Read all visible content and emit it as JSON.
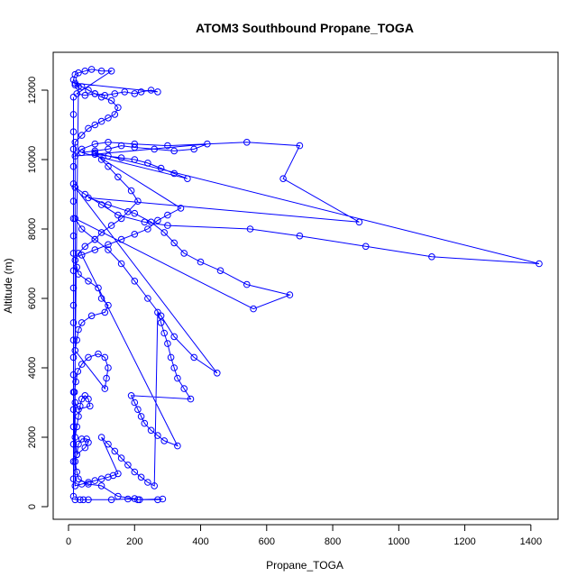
{
  "chart_data": {
    "type": "line",
    "title": "ATOM3 Southbound Propane_TOGA",
    "xlabel": "Propane_TOGA",
    "ylabel": "Altitude (m)",
    "xlim": [
      0,
      1440
    ],
    "ylim": [
      0,
      12700
    ],
    "x_ticks": [
      0,
      200,
      400,
      600,
      800,
      1000,
      1200,
      1400
    ],
    "y_ticks": [
      0,
      2000,
      4000,
      6000,
      8000,
      10000,
      12000
    ],
    "marker": "open-circle",
    "grid": false,
    "color": "#0000ff",
    "series": [
      {
        "name": "",
        "points": [
          [
            20,
            200
          ],
          [
            35,
            200
          ],
          [
            45,
            200
          ],
          [
            60,
            200
          ],
          [
            130,
            200
          ],
          [
            180,
            220
          ],
          [
            215,
            200
          ],
          [
            270,
            200
          ],
          [
            285,
            220
          ],
          [
            210,
            200
          ],
          [
            200,
            230
          ],
          [
            150,
            300
          ],
          [
            100,
            600
          ],
          [
            60,
            650
          ],
          [
            30,
            800
          ],
          [
            25,
            1000
          ],
          [
            20,
            1300
          ],
          [
            25,
            1500
          ],
          [
            30,
            1800
          ],
          [
            40,
            1950
          ],
          [
            55,
            1950
          ],
          [
            60,
            1850
          ],
          [
            50,
            1700
          ],
          [
            25,
            1500
          ],
          [
            20,
            2000
          ],
          [
            25,
            2300
          ],
          [
            30,
            2600
          ],
          [
            35,
            2900
          ],
          [
            40,
            3100
          ],
          [
            50,
            3200
          ],
          [
            60,
            3100
          ],
          [
            65,
            2900
          ],
          [
            30,
            2800
          ],
          [
            20,
            3000
          ],
          [
            18,
            3300
          ],
          [
            22,
            3600
          ],
          [
            28,
            3900
          ],
          [
            40,
            4100
          ],
          [
            60,
            4300
          ],
          [
            90,
            4400
          ],
          [
            110,
            4300
          ],
          [
            120,
            4000
          ],
          [
            115,
            3700
          ],
          [
            110,
            3400
          ],
          [
            20,
            4500
          ],
          [
            25,
            4800
          ],
          [
            30,
            5100
          ],
          [
            40,
            5300
          ],
          [
            70,
            5500
          ],
          [
            110,
            5600
          ],
          [
            120,
            5800
          ],
          [
            100,
            6000
          ],
          [
            90,
            6300
          ],
          [
            60,
            6500
          ],
          [
            30,
            6700
          ],
          [
            25,
            6900
          ],
          [
            20,
            7100
          ],
          [
            30,
            7300
          ],
          [
            50,
            7500
          ],
          [
            80,
            7700
          ],
          [
            100,
            7900
          ],
          [
            130,
            8100
          ],
          [
            160,
            8300
          ],
          [
            180,
            8500
          ],
          [
            210,
            8800
          ],
          [
            190,
            9100
          ],
          [
            150,
            9500
          ],
          [
            120,
            9800
          ],
          [
            100,
            10000
          ],
          [
            80,
            10200
          ],
          [
            1425,
            7000
          ],
          [
            1100,
            7200
          ],
          [
            900,
            7500
          ],
          [
            700,
            7800
          ],
          [
            550,
            8000
          ],
          [
            300,
            8100
          ],
          [
            230,
            8200
          ],
          [
            150,
            8400
          ],
          [
            100,
            8700
          ],
          [
            50,
            9000
          ],
          [
            20,
            9200
          ],
          [
            450,
            3850
          ],
          [
            380,
            4300
          ],
          [
            320,
            4900
          ],
          [
            280,
            5500
          ],
          [
            240,
            6000
          ],
          [
            200,
            6500
          ],
          [
            160,
            7000
          ],
          [
            120,
            7400
          ],
          [
            80,
            7700
          ],
          [
            40,
            8000
          ],
          [
            20,
            8300
          ],
          [
            560,
            5700
          ],
          [
            670,
            6100
          ],
          [
            540,
            6400
          ],
          [
            460,
            6800
          ],
          [
            400,
            7050
          ],
          [
            350,
            7300
          ],
          [
            320,
            7600
          ],
          [
            290,
            7900
          ],
          [
            250,
            8200
          ],
          [
            200,
            8450
          ],
          [
            120,
            8700
          ],
          [
            60,
            8900
          ],
          [
            880,
            8200
          ],
          [
            650,
            9450
          ],
          [
            700,
            10400
          ],
          [
            540,
            10500
          ],
          [
            300,
            10400
          ],
          [
            200,
            10450
          ],
          [
            120,
            10500
          ],
          [
            80,
            10450
          ],
          [
            40,
            10300
          ],
          [
            20,
            10100
          ],
          [
            420,
            10450
          ],
          [
            380,
            10300
          ],
          [
            320,
            10250
          ],
          [
            260,
            10300
          ],
          [
            200,
            10350
          ],
          [
            160,
            10400
          ],
          [
            120,
            10300
          ],
          [
            80,
            10250
          ],
          [
            40,
            10200
          ],
          [
            360,
            9450
          ],
          [
            320,
            9600
          ],
          [
            280,
            9750
          ],
          [
            240,
            9900
          ],
          [
            200,
            10000
          ],
          [
            160,
            10050
          ],
          [
            120,
            10100
          ],
          [
            80,
            10150
          ],
          [
            340,
            8600
          ],
          [
            300,
            8400
          ],
          [
            270,
            8250
          ],
          [
            240,
            8000
          ],
          [
            200,
            7850
          ],
          [
            160,
            7700
          ],
          [
            120,
            7550
          ],
          [
            80,
            7400
          ],
          [
            40,
            7250
          ],
          [
            330,
            1750
          ],
          [
            290,
            1900
          ],
          [
            270,
            2050
          ],
          [
            250,
            2200
          ],
          [
            230,
            2400
          ],
          [
            220,
            2600
          ],
          [
            210,
            2800
          ],
          [
            200,
            3000
          ],
          [
            190,
            3200
          ],
          [
            370,
            3100
          ],
          [
            350,
            3400
          ],
          [
            330,
            3700
          ],
          [
            320,
            4000
          ],
          [
            310,
            4300
          ],
          [
            300,
            4700
          ],
          [
            290,
            5000
          ],
          [
            280,
            5300
          ],
          [
            270,
            5600
          ],
          [
            260,
            600
          ],
          [
            240,
            700
          ],
          [
            220,
            850
          ],
          [
            200,
            1000
          ],
          [
            180,
            1200
          ],
          [
            160,
            1400
          ],
          [
            140,
            1600
          ],
          [
            120,
            1800
          ],
          [
            100,
            2000
          ],
          [
            150,
            950
          ],
          [
            135,
            900
          ],
          [
            120,
            850
          ],
          [
            100,
            800
          ],
          [
            80,
            750
          ],
          [
            60,
            700
          ],
          [
            40,
            650
          ],
          [
            20,
            600
          ],
          [
            20,
            10500
          ],
          [
            40,
            10700
          ],
          [
            60,
            10900
          ],
          [
            80,
            11000
          ],
          [
            100,
            11100
          ],
          [
            120,
            11200
          ],
          [
            140,
            11300
          ],
          [
            150,
            11500
          ],
          [
            130,
            11700
          ],
          [
            100,
            11800
          ],
          [
            80,
            11900
          ],
          [
            60,
            12000
          ],
          [
            40,
            12100
          ],
          [
            20,
            12200
          ],
          [
            270,
            11950
          ],
          [
            250,
            12000
          ],
          [
            220,
            11950
          ],
          [
            200,
            11900
          ],
          [
            170,
            11950
          ],
          [
            140,
            11900
          ],
          [
            110,
            11850
          ],
          [
            80,
            11900
          ],
          [
            50,
            11850
          ],
          [
            25,
            11900
          ],
          [
            130,
            12550
          ],
          [
            100,
            12550
          ],
          [
            70,
            12600
          ],
          [
            50,
            12550
          ],
          [
            30,
            12500
          ],
          [
            20,
            12450
          ],
          [
            15,
            12300
          ],
          [
            20,
            12150
          ],
          [
            30,
            12100
          ],
          [
            15,
            300
          ],
          [
            15,
            800
          ],
          [
            15,
            1300
          ],
          [
            15,
            1800
          ],
          [
            15,
            2300
          ],
          [
            15,
            2800
          ],
          [
            15,
            3300
          ],
          [
            15,
            3800
          ],
          [
            15,
            4300
          ],
          [
            15,
            4800
          ],
          [
            15,
            5300
          ],
          [
            15,
            5800
          ],
          [
            15,
            6300
          ],
          [
            15,
            6800
          ],
          [
            15,
            7300
          ],
          [
            15,
            7800
          ],
          [
            15,
            8300
          ],
          [
            15,
            8800
          ],
          [
            15,
            9300
          ],
          [
            15,
            9800
          ],
          [
            15,
            10300
          ],
          [
            15,
            10800
          ],
          [
            15,
            11300
          ],
          [
            15,
            11800
          ]
        ]
      }
    ]
  }
}
